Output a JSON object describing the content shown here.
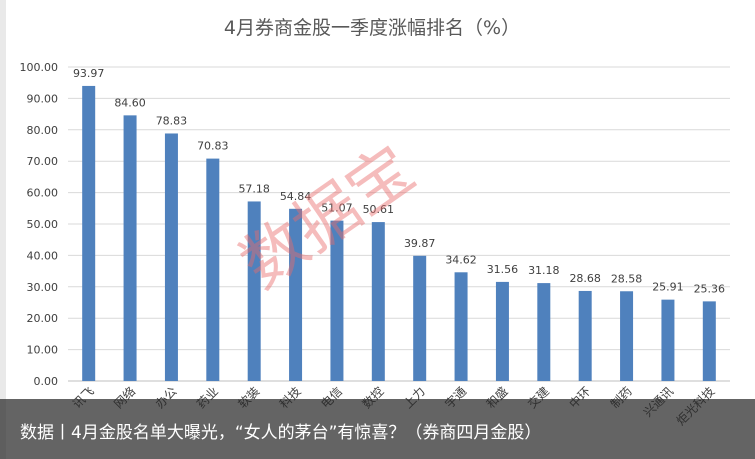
{
  "chart_data": {
    "type": "bar",
    "title": "4月券商金股一季度涨幅排名（%）",
    "xlabel": "",
    "ylabel": "",
    "ylim": [
      0,
      100
    ],
    "yticks": [
      "0.00",
      "10.00",
      "20.00",
      "30.00",
      "40.00",
      "50.00",
      "60.00",
      "70.00",
      "80.00",
      "90.00",
      "100.00"
    ],
    "grid": true,
    "bar_color": "#4f81bd",
    "categories": [
      "讯飞",
      "网络",
      "办公",
      "药业",
      "软装",
      "科技",
      "电信",
      "数控",
      "上力",
      "宇通",
      "和盛",
      "交建",
      "中环",
      "制药",
      "兴通讯",
      "炬光科技"
    ],
    "values": [
      93.97,
      84.6,
      78.83,
      70.83,
      57.18,
      54.84,
      51.07,
      50.61,
      39.87,
      34.62,
      31.56,
      31.18,
      28.68,
      28.58,
      25.91,
      25.36
    ],
    "value_labels": [
      "93.97",
      "84.60",
      "78.83",
      "70.83",
      "57.18",
      "54.84",
      "51.07",
      "50.61",
      "39.87",
      "34.62",
      "31.56",
      "31.18",
      "28.68",
      "28.58",
      "25.91",
      "25.36"
    ]
  },
  "watermark": "数据宝",
  "caption": "数据丨4月金股名单大曝光，“女人的茅台”有惊喜？（券商四月金股）"
}
